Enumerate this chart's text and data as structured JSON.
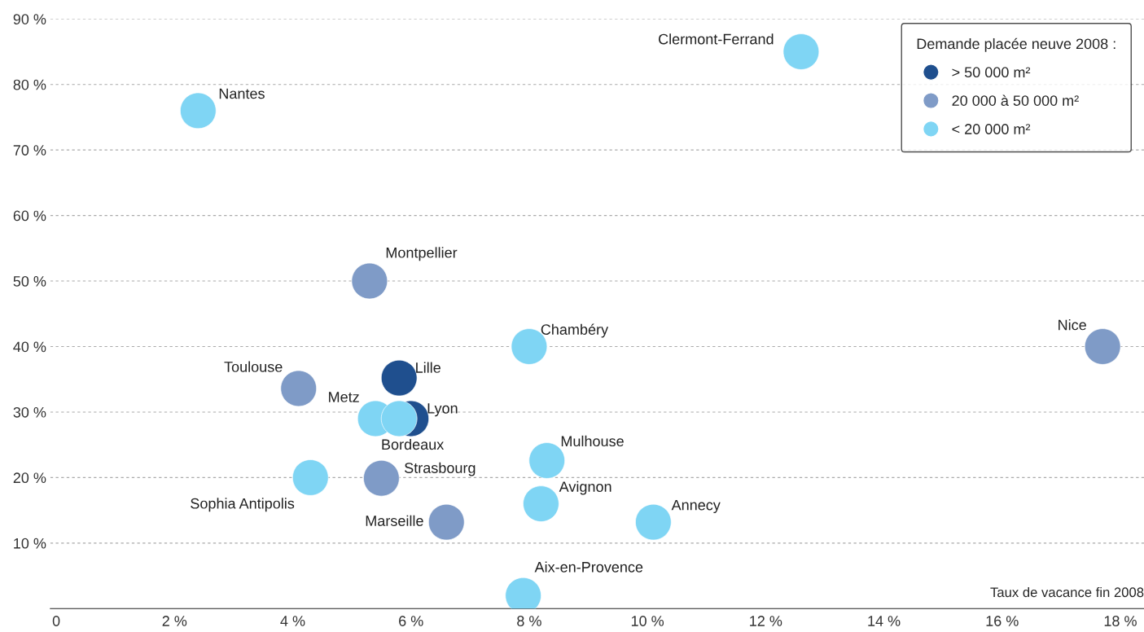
{
  "chart_data": {
    "type": "scatter",
    "xlabel": "Taux de vacance fin 2008",
    "legend_title": "Demande placée neuve 2008 :",
    "legend": "top right",
    "grid": "y",
    "marker": "circle",
    "xlim": [
      -0.1,
      18.4
    ],
    "ylim": [
      0,
      90
    ],
    "xticks": [
      {
        "value": 0,
        "label": "0"
      },
      {
        "value": 2,
        "label": "2 %"
      },
      {
        "value": 4,
        "label": "4 %"
      },
      {
        "value": 6,
        "label": "6 %"
      },
      {
        "value": 8,
        "label": "8 %"
      },
      {
        "value": 10,
        "label": "10 %"
      },
      {
        "value": 12,
        "label": "12 %"
      },
      {
        "value": 14,
        "label": "14 %"
      },
      {
        "value": 16,
        "label": "16 %"
      },
      {
        "value": 18,
        "label": "18 %"
      }
    ],
    "yticks": [
      {
        "value": 10,
        "label": "10 %"
      },
      {
        "value": 20,
        "label": "20 %"
      },
      {
        "value": 30,
        "label": "30 %"
      },
      {
        "value": 40,
        "label": "40 %"
      },
      {
        "value": 50,
        "label": "50 %"
      },
      {
        "value": 60,
        "label": "60 %"
      },
      {
        "value": 70,
        "label": "70 %"
      },
      {
        "value": 80,
        "label": "80 %"
      },
      {
        "value": 90,
        "label": "90 %"
      }
    ],
    "series": [
      {
        "name": "> 50 000 m²",
        "color": "#1f4f8e",
        "x": [
          5.8,
          6.0
        ],
        "values": [
          35.2,
          29
        ]
      },
      {
        "name": "20 000 à 50 000 m²",
        "color": "#7f9bc7",
        "x": [
          5.3,
          17.7,
          4.1,
          5.5,
          6.6
        ],
        "values": [
          50,
          40,
          33.6,
          19.9,
          13.2
        ]
      },
      {
        "name": "< 20 000 m²",
        "color": "#7fd5f4",
        "x": [
          2.4,
          12.6,
          8.0,
          5.4,
          5.8,
          8.3,
          4.3,
          8.2,
          10.1,
          7.9
        ],
        "values": [
          76,
          85,
          40,
          29,
          29,
          22.6,
          20,
          16,
          13.2,
          2
        ]
      }
    ],
    "annotations": [
      {
        "text": "Lille",
        "x": 5.8,
        "y": 35.2
      },
      {
        "text": "Lyon",
        "x": 6.0,
        "y": 29
      },
      {
        "text": "Montpellier",
        "x": 5.3,
        "y": 50
      },
      {
        "text": "Nice",
        "x": 17.7,
        "y": 40
      },
      {
        "text": "Toulouse",
        "x": 4.1,
        "y": 33.6
      },
      {
        "text": "Strasbourg",
        "x": 5.5,
        "y": 19.9
      },
      {
        "text": "Marseille",
        "x": 6.6,
        "y": 13.2
      },
      {
        "text": "Nantes",
        "x": 2.4,
        "y": 76
      },
      {
        "text": "Clermont-Ferrand",
        "x": 12.6,
        "y": 85
      },
      {
        "text": "Chambéry",
        "x": 8.0,
        "y": 40
      },
      {
        "text": "Metz",
        "x": 5.4,
        "y": 29
      },
      {
        "text": "Bordeaux",
        "x": 5.8,
        "y": 29
      },
      {
        "text": "Mulhouse",
        "x": 8.3,
        "y": 22.6
      },
      {
        "text": "Sophia Antipolis",
        "x": 4.3,
        "y": 20
      },
      {
        "text": "Avignon",
        "x": 8.2,
        "y": 16
      },
      {
        "text": "Annecy",
        "x": 10.1,
        "y": 13.2
      },
      {
        "text": "Aix-en-Provence",
        "x": 7.9,
        "y": 2
      }
    ]
  }
}
